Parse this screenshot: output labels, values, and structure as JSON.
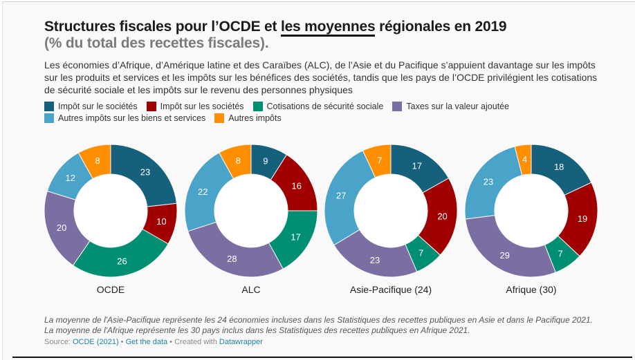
{
  "title": {
    "before": "Structures fiscales pour l’OCDE et ",
    "underlined": "les moyennes",
    "after": " régionales en 2019"
  },
  "subtitle": "(% du total des recettes fiscales).",
  "description": "Les économies d’Afrique, d’Amérique latine et des Caraïbes (ALC), de l’Asie et du Pacifique s’appuient davantage sur les impôts sur les produits et services et les impôts sur les bénéfices des sociétés, tandis que les pays de l’OCDE privilégient les cotisations de sécurité sociale et les impôts sur le revenu des personnes physiques",
  "legend": [
    {
      "label": "Impôt sur le sociétés",
      "color": "#15607a"
    },
    {
      "label": "Impôt sur les sociétés",
      "color": "#a00000"
    },
    {
      "label": "Cotisations de sécurité sociale",
      "color": "#008f72"
    },
    {
      "label": "Taxes sur la valeur ajoutée",
      "color": "#7b6ea3"
    },
    {
      "label": "Autres impôts sur les biens et services",
      "color": "#4aa3c8"
    },
    {
      "label": "Autres impôts",
      "color": "#ff8f00"
    }
  ],
  "chart_data": {
    "type": "pie",
    "variant": "donut",
    "title": "Structures fiscales pour l’OCDE et les moyennes régionales en 2019",
    "subtitle": "(% du total des recettes fiscales).",
    "categories": [
      "Impôt sur le sociétés",
      "Impôt sur les sociétés",
      "Cotisations de sécurité sociale",
      "Taxes sur la valeur ajoutée",
      "Autres impôts sur les biens et services",
      "Autres impôts"
    ],
    "colors": [
      "#15607a",
      "#a00000",
      "#008f72",
      "#7b6ea3",
      "#4aa3c8",
      "#ff8f00"
    ],
    "series": [
      {
        "name": "OCDE",
        "values": [
          23,
          10,
          26,
          20,
          12,
          8
        ]
      },
      {
        "name": "ALC",
        "values": [
          9,
          16,
          17,
          28,
          22,
          8
        ]
      },
      {
        "name": "Asie-Pacifique (24)",
        "values": [
          17,
          20,
          7,
          23,
          27,
          7
        ]
      },
      {
        "name": "Afrique (30)",
        "values": [
          18,
          19,
          7,
          29,
          23,
          4
        ]
      }
    ],
    "unit": "% du total des recettes fiscales",
    "legend_position": "top-left"
  },
  "notes": "La moyenne de l'Asie-Pacifique représente les 24 économies incluses dans les Statistiques des recettes publiques en Asie et dans le Pacifique 2021. La moyenne de l'Afrique représente les 30 pays inclus dans les Statistiques des recettes publiques en Afrique 2021.",
  "source": {
    "prefix": "Source: ",
    "source_link": "OCDE (2021)",
    "sep1": " • ",
    "data_link": "Get the data",
    "sep2": " • Created with ",
    "tool_link": "Datawrapper"
  }
}
